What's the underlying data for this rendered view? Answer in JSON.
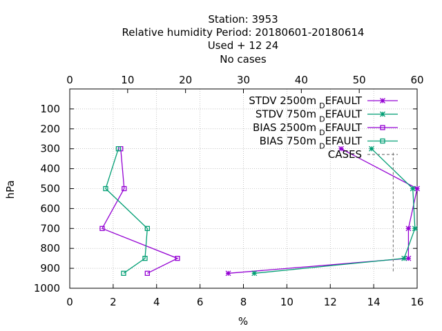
{
  "chart_data": {
    "type": "line",
    "title_lines": [
      "Station:     3953",
      "Relative humidity  Period: 20180601-20180614",
      "Used   + 12 24",
      "No cases"
    ],
    "xlabel": "%",
    "ylabel": "hPa",
    "x_bottom": {
      "range": [
        0,
        16
      ],
      "ticks": [
        "0",
        "2",
        "4",
        "6",
        "8",
        "10",
        "12",
        "14",
        "16"
      ]
    },
    "x_top": {
      "range": [
        0,
        60
      ],
      "ticks": [
        "0",
        "10",
        "20",
        "30",
        "40",
        "50",
        "60"
      ]
    },
    "y": {
      "range": [
        1000,
        0
      ],
      "reversed": true,
      "ticks": [
        "100",
        "200",
        "300",
        "400",
        "500",
        "600",
        "700",
        "800",
        "900",
        "1000"
      ]
    },
    "grid": true,
    "legend_position": "top-right",
    "series": [
      {
        "name": "STDV 2500m",
        "sub": "D",
        "suffix": "EFAULT",
        "color": "#9400d3",
        "marker": "star",
        "axis": "bottom",
        "points": [
          [
            12.5,
            300
          ],
          [
            16.0,
            500
          ],
          [
            15.6,
            700
          ],
          [
            15.6,
            850
          ],
          [
            7.3,
            925
          ]
        ]
      },
      {
        "name": "STDV 750m",
        "sub": "D",
        "suffix": "EFAULT",
        "color": "#009e73",
        "marker": "star",
        "axis": "bottom",
        "points": [
          [
            13.9,
            300
          ],
          [
            15.8,
            500
          ],
          [
            15.9,
            700
          ],
          [
            15.4,
            850
          ],
          [
            8.5,
            925
          ]
        ]
      },
      {
        "name": "BIAS 2500m",
        "sub": "D",
        "suffix": "EFAULT",
        "color": "#9400d3",
        "marker": "square",
        "axis": "top",
        "points": [
          [
            8.8,
            300
          ],
          [
            9.4,
            500
          ],
          [
            5.6,
            700
          ],
          [
            18.6,
            850
          ],
          [
            13.4,
            925
          ]
        ]
      },
      {
        "name": "BIAS 750m",
        "sub": "D",
        "suffix": "EFAULT",
        "color": "#009e73",
        "marker": "square",
        "axis": "top",
        "points": [
          [
            8.4,
            300
          ],
          [
            6.2,
            500
          ],
          [
            13.4,
            700
          ],
          [
            13.0,
            850
          ],
          [
            9.3,
            925
          ]
        ]
      },
      {
        "name": "CASES",
        "sub": "",
        "suffix": "",
        "color": "#808080",
        "marker": "none",
        "dashed": true,
        "axis": "bottom",
        "points": [
          [
            14.9,
            320
          ],
          [
            14.9,
            925
          ]
        ]
      }
    ]
  }
}
